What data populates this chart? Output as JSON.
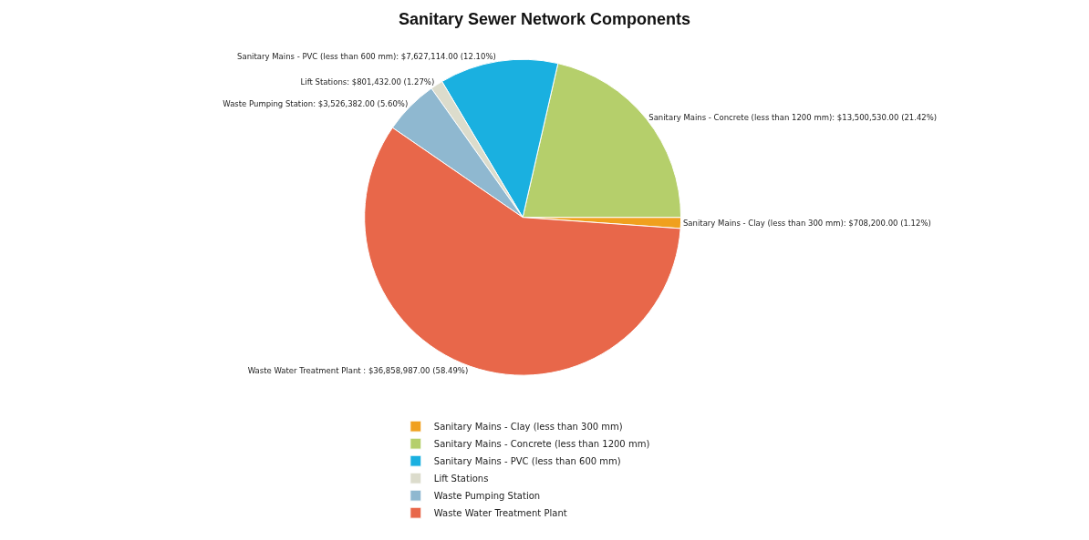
{
  "chart_data": {
    "type": "pie",
    "title": "Sanitary Sewer Network Components",
    "categories": [
      "Sanitary Mains - Clay (less than 300 mm)",
      "Sanitary Mains - Concrete (less than 1200 mm)",
      "Sanitary Mains - PVC (less than 600 mm)",
      "Lift Stations",
      "Waste Pumping Station",
      "Waste Water Treatment Plant"
    ],
    "values": [
      708200.0,
      13500530.0,
      7627114.0,
      801432.0,
      3526382.0,
      36858987.0
    ],
    "value_labels": [
      "Sanitary Mains - Clay (less than 300 mm): $708,200.00 (1.12%)",
      "Sanitary Mains - Concrete (less than 1200 mm): $13,500,530.00 (21.42%)",
      "Sanitary Mains - PVC (less than 600 mm): $7,627,114.00 (12.10%)",
      "Lift Stations: $801,432.00 (1.27%)",
      "Waste Pumping Station: $3,526,382.00 (5.60%)",
      "Waste Water Treatment Plant : $36,858,987.00 (58.49%)"
    ],
    "colors": [
      "#f0a01e",
      "#b5cf6b",
      "#1ab0e0",
      "#dcdccc",
      "#8fb8d0",
      "#e8674a"
    ],
    "legend": "bottom"
  }
}
